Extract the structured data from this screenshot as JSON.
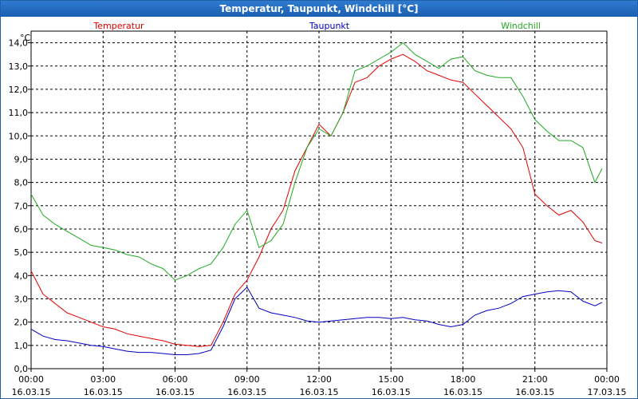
{
  "window": {
    "title": "Temperatur, Taupunkt, Windchill [°C]"
  },
  "chart_data": {
    "type": "line",
    "ylabel": "°C",
    "ylim": [
      0,
      14.5
    ],
    "xlim": [
      0,
      24
    ],
    "grid": true,
    "legend": "top",
    "yticks": [
      "0,0",
      "1,0",
      "2,0",
      "3,0",
      "4,0",
      "5,0",
      "6,0",
      "7,0",
      "8,0",
      "9,0",
      "10,0",
      "11,0",
      "12,0",
      "13,0",
      "14,0"
    ],
    "xticks": [
      {
        "time": "00:00",
        "date": "16.03.15"
      },
      {
        "time": "03:00",
        "date": "16.03.15"
      },
      {
        "time": "06:00",
        "date": "16.03.15"
      },
      {
        "time": "09:00",
        "date": "16.03.15"
      },
      {
        "time": "12:00",
        "date": "16.03.15"
      },
      {
        "time": "15:00",
        "date": "16.03.15"
      },
      {
        "time": "18:00",
        "date": "16.03.15"
      },
      {
        "time": "21:00",
        "date": "16.03.15"
      },
      {
        "time": "00:00",
        "date": "17.03.15"
      }
    ],
    "x": [
      0,
      0.5,
      1,
      1.5,
      2,
      2.5,
      3,
      3.5,
      4,
      4.5,
      5,
      5.5,
      6,
      6.5,
      7,
      7.5,
      8,
      8.5,
      9,
      9.5,
      10,
      10.5,
      11,
      11.5,
      12,
      12.5,
      13,
      13.5,
      14,
      14.5,
      15,
      15.5,
      16,
      16.5,
      17,
      17.5,
      18,
      18.5,
      19,
      19.5,
      20,
      20.5,
      21,
      21.5,
      22,
      22.5,
      23,
      23.5,
      23.8
    ],
    "series": [
      {
        "name": "Temperatur",
        "color": "#e00000",
        "values": [
          4.2,
          3.2,
          2.8,
          2.4,
          2.2,
          2.0,
          1.8,
          1.7,
          1.5,
          1.4,
          1.3,
          1.2,
          1.05,
          1.0,
          0.95,
          1.0,
          2.0,
          3.2,
          3.8,
          4.8,
          6.0,
          6.8,
          8.5,
          9.5,
          10.5,
          10.0,
          11.0,
          12.3,
          12.5,
          13.0,
          13.3,
          13.5,
          13.2,
          12.8,
          12.6,
          12.4,
          12.3,
          11.8,
          11.3,
          10.8,
          10.3,
          9.5,
          7.5,
          7.0,
          6.6,
          6.8,
          6.3,
          5.5,
          5.4
        ]
      },
      {
        "name": "Taupunkt",
        "color": "#0000c0",
        "values": [
          1.7,
          1.4,
          1.25,
          1.2,
          1.1,
          1.0,
          0.95,
          0.85,
          0.75,
          0.7,
          0.7,
          0.65,
          0.6,
          0.6,
          0.65,
          0.8,
          1.8,
          3.0,
          3.5,
          2.6,
          2.4,
          2.3,
          2.2,
          2.05,
          2.0,
          2.05,
          2.1,
          2.15,
          2.2,
          2.2,
          2.15,
          2.2,
          2.1,
          2.05,
          1.9,
          1.8,
          1.9,
          2.3,
          2.5,
          2.6,
          2.8,
          3.1,
          3.2,
          3.3,
          3.35,
          3.3,
          2.9,
          2.7,
          2.85
        ]
      },
      {
        "name": "Windchill",
        "color": "#22aa22",
        "values": [
          7.5,
          6.6,
          6.2,
          5.9,
          5.6,
          5.3,
          5.2,
          5.1,
          4.9,
          4.8,
          4.5,
          4.3,
          3.8,
          4.0,
          4.3,
          4.5,
          5.2,
          6.2,
          6.8,
          5.2,
          5.5,
          6.2,
          8.0,
          9.5,
          10.3,
          10.0,
          11.0,
          12.8,
          13.0,
          13.3,
          13.6,
          14.0,
          13.5,
          13.2,
          12.9,
          13.3,
          13.4,
          12.8,
          12.6,
          12.5,
          12.5,
          11.7,
          10.7,
          10.2,
          9.8,
          9.8,
          9.5,
          8.0,
          8.6
        ]
      }
    ]
  }
}
